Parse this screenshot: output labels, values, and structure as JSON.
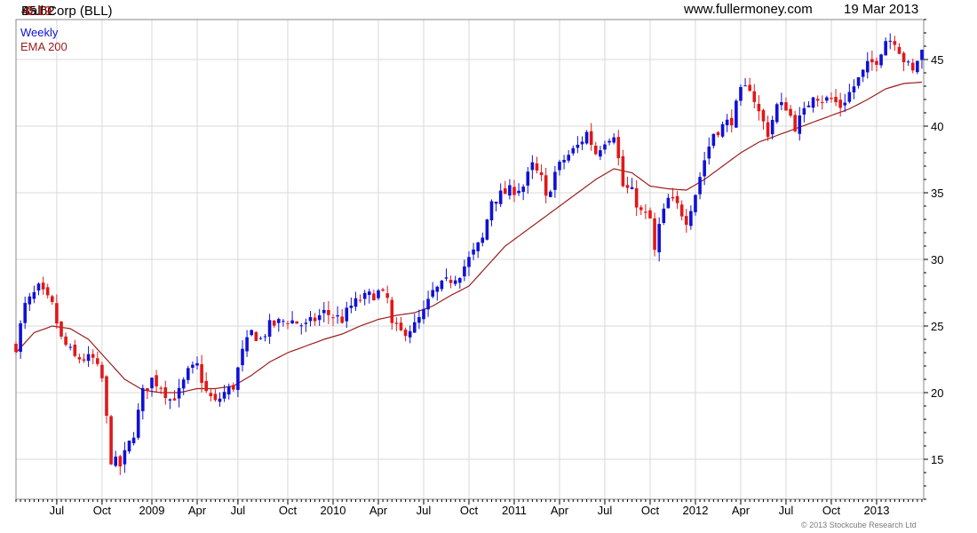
{
  "header": {
    "company": "Ball Corp (BLL)",
    "price": "45.62",
    "change": "-0.19",
    "website": "www.fullermoney.com",
    "date": "19 Mar 2013"
  },
  "copyright": "© 2013 Stockcube Research Ltd",
  "colors": {
    "up": "#1010d8",
    "down": "#e01818",
    "ema": "#9b1b1b",
    "grid": "#d8d8d8",
    "axis": "#000000"
  },
  "chart_data": {
    "type": "candlestick",
    "frequency": "Weekly",
    "legend": [
      {
        "name": "Weekly",
        "color": "#1010d8"
      },
      {
        "name": "EMA 200",
        "color": "#9b1b1b"
      }
    ],
    "ylim": [
      12,
      48
    ],
    "yticks": [
      15,
      20,
      25,
      30,
      35,
      40,
      45
    ],
    "xlim": [
      0,
      200.4
    ],
    "xticks": [
      {
        "label": "Jul",
        "week": 9
      },
      {
        "label": "Oct",
        "week": 19
      },
      {
        "label": "2009",
        "week": 30
      },
      {
        "label": "Apr",
        "week": 40
      },
      {
        "label": "Jul",
        "week": 49
      },
      {
        "label": "Oct",
        "week": 60
      },
      {
        "label": "2010",
        "week": 70
      },
      {
        "label": "Apr",
        "week": 80
      },
      {
        "label": "Jul",
        "week": 90
      },
      {
        "label": "Oct",
        "week": 100
      },
      {
        "label": "2011",
        "week": 110
      },
      {
        "label": "Apr",
        "week": 120
      },
      {
        "label": "Jul",
        "week": 130
      },
      {
        "label": "Oct",
        "week": 140
      },
      {
        "label": "2012",
        "week": 150
      },
      {
        "label": "Apr",
        "week": 160
      },
      {
        "label": "Jul",
        "week": 170
      },
      {
        "label": "Oct",
        "week": 180
      },
      {
        "label": "2013",
        "week": 190
      }
    ],
    "price_anchors": [
      [
        0,
        23.5
      ],
      [
        2,
        26.5
      ],
      [
        5,
        27.8
      ],
      [
        8,
        26.5
      ],
      [
        10,
        24
      ],
      [
        13,
        22.6
      ],
      [
        17,
        22.5
      ],
      [
        19,
        21
      ],
      [
        21,
        15
      ],
      [
        23,
        14.5
      ],
      [
        26,
        17
      ],
      [
        28,
        20
      ],
      [
        30,
        21
      ],
      [
        32,
        20.5
      ],
      [
        34,
        19.5
      ],
      [
        36,
        20
      ],
      [
        38,
        21.5
      ],
      [
        40,
        22
      ],
      [
        42,
        20
      ],
      [
        44,
        19.2
      ],
      [
        46,
        20
      ],
      [
        48,
        20.5
      ],
      [
        50,
        23
      ],
      [
        52,
        24.5
      ],
      [
        54,
        24
      ],
      [
        56,
        25
      ],
      [
        60,
        25.5
      ],
      [
        64,
        25
      ],
      [
        68,
        26
      ],
      [
        72,
        25.5
      ],
      [
        74,
        26.5
      ],
      [
        76,
        27
      ],
      [
        80,
        27.5
      ],
      [
        82,
        27
      ],
      [
        83,
        25
      ],
      [
        85,
        24.5
      ],
      [
        88,
        25
      ],
      [
        90,
        26
      ],
      [
        92,
        27.5
      ],
      [
        96,
        28.5
      ],
      [
        98,
        29
      ],
      [
        100,
        30
      ],
      [
        103,
        31.5
      ],
      [
        105,
        34.5
      ],
      [
        108,
        35
      ],
      [
        112,
        35.5
      ],
      [
        114,
        37
      ],
      [
        116,
        36
      ],
      [
        117,
        34.5
      ],
      [
        119,
        36.5
      ],
      [
        121,
        37.5
      ],
      [
        124,
        38.5
      ],
      [
        126,
        39.5
      ],
      [
        128,
        38
      ],
      [
        130,
        39
      ],
      [
        132,
        39.5
      ],
      [
        133,
        37.5
      ],
      [
        134,
        35.5
      ],
      [
        136,
        35
      ],
      [
        138,
        33.5
      ],
      [
        140,
        33
      ],
      [
        141,
        30.5
      ],
      [
        142,
        32.5
      ],
      [
        144,
        34.5
      ],
      [
        146,
        34
      ],
      [
        148,
        33
      ],
      [
        150,
        35
      ],
      [
        152,
        37.5
      ],
      [
        154,
        39.5
      ],
      [
        156,
        40
      ],
      [
        158,
        40.5
      ],
      [
        160,
        42.5
      ],
      [
        162,
        43
      ],
      [
        164,
        41
      ],
      [
        166,
        39.5
      ],
      [
        168,
        41.5
      ],
      [
        170,
        41.5
      ],
      [
        172,
        40
      ],
      [
        174,
        41
      ],
      [
        176,
        42.5
      ],
      [
        178,
        42
      ],
      [
        180,
        42
      ],
      [
        182,
        41.5
      ],
      [
        184,
        42.5
      ],
      [
        186,
        43.5
      ],
      [
        188,
        44.5
      ],
      [
        190,
        45
      ],
      [
        192,
        46.5
      ],
      [
        194,
        46.5
      ],
      [
        196,
        45
      ],
      [
        198,
        44
      ],
      [
        199,
        45
      ],
      [
        200,
        45.62
      ]
    ],
    "ema_anchors": [
      [
        0,
        23
      ],
      [
        4,
        24.5
      ],
      [
        8,
        25
      ],
      [
        12,
        24.8
      ],
      [
        16,
        24
      ],
      [
        20,
        22.5
      ],
      [
        24,
        21
      ],
      [
        28,
        20.2
      ],
      [
        32,
        20
      ],
      [
        36,
        20
      ],
      [
        40,
        20.3
      ],
      [
        44,
        20.3
      ],
      [
        48,
        20.5
      ],
      [
        52,
        21.3
      ],
      [
        56,
        22.3
      ],
      [
        60,
        23
      ],
      [
        64,
        23.5
      ],
      [
        68,
        24
      ],
      [
        72,
        24.4
      ],
      [
        76,
        25
      ],
      [
        80,
        25.5
      ],
      [
        84,
        25.8
      ],
      [
        88,
        26
      ],
      [
        92,
        26.5
      ],
      [
        96,
        27.3
      ],
      [
        100,
        28
      ],
      [
        104,
        29.5
      ],
      [
        108,
        31
      ],
      [
        112,
        32
      ],
      [
        116,
        33
      ],
      [
        120,
        34
      ],
      [
        124,
        35
      ],
      [
        128,
        36
      ],
      [
        132,
        36.8
      ],
      [
        136,
        36.5
      ],
      [
        140,
        35.5
      ],
      [
        144,
        35.3
      ],
      [
        148,
        35.2
      ],
      [
        152,
        36
      ],
      [
        156,
        37
      ],
      [
        160,
        38
      ],
      [
        164,
        38.8
      ],
      [
        168,
        39.3
      ],
      [
        172,
        39.8
      ],
      [
        176,
        40.3
      ],
      [
        180,
        40.8
      ],
      [
        184,
        41.3
      ],
      [
        188,
        42
      ],
      [
        192,
        42.8
      ],
      [
        196,
        43.2
      ],
      [
        200,
        43.3
      ]
    ]
  }
}
